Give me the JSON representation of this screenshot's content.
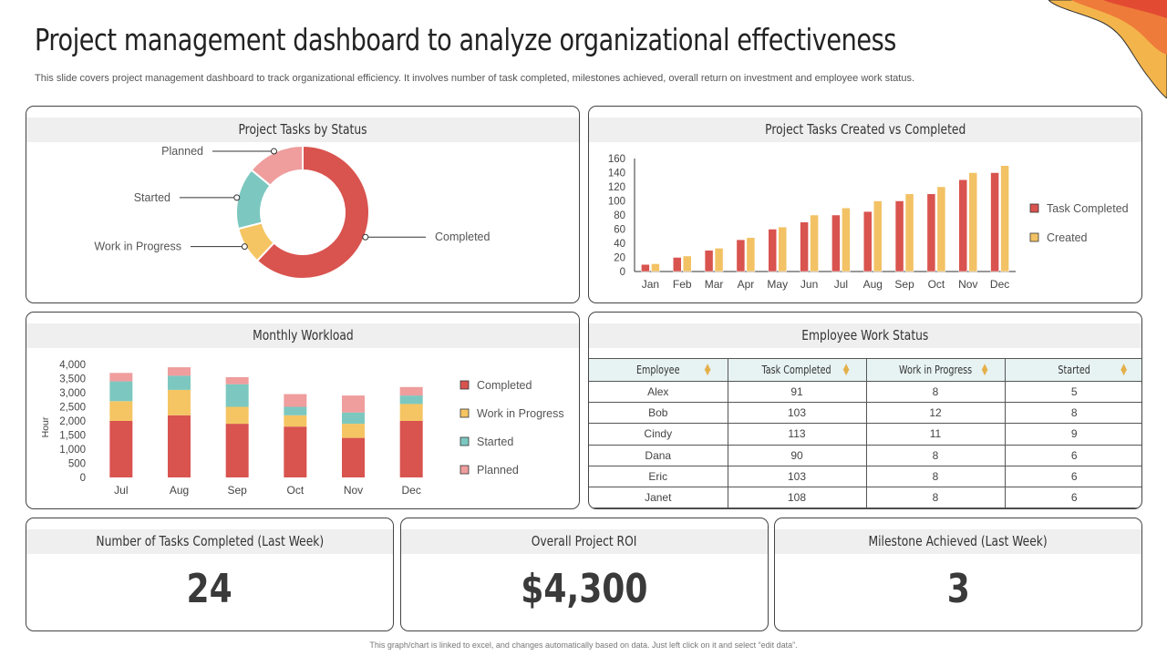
{
  "page": {
    "title": "Project management dashboard to analyze organizational effectiveness",
    "subtitle": "This slide covers project management dashboard to track organizational efficiency. It involves number of task completed, milestones achieved, overall return on investment and employee work status.",
    "footer": "This graph/chart is linked to excel, and changes automatically based on data. Just left click on it and select “edit data”."
  },
  "colors": {
    "completed": "#d9534f",
    "work_in_progress": "#f5c563",
    "started": "#7cc8c0",
    "planned": "#ef9d9d",
    "created": "#f2c265"
  },
  "panels": {
    "status_title": "Project Tasks by Status",
    "created_title": "Project Tasks Created  vs Completed",
    "workload_title": "Monthly Workload",
    "employee_title": "Employee Work Status"
  },
  "chart_data": [
    {
      "type": "pie",
      "title": "Project Tasks by Status",
      "labels": [
        "Completed",
        "Work in Progress",
        "Started",
        "Planned"
      ],
      "values": [
        62,
        9,
        15,
        14
      ]
    },
    {
      "type": "bar",
      "title": "Project Tasks Created  vs Completed",
      "categories": [
        "Jan",
        "Feb",
        "Mar",
        "Apr",
        "May",
        "Jun",
        "Jul",
        "Aug",
        "Sep",
        "Oct",
        "Nov",
        "Dec"
      ],
      "series": [
        {
          "name": "Task Completed",
          "values": [
            10,
            20,
            30,
            45,
            60,
            70,
            80,
            85,
            100,
            110,
            130,
            140
          ]
        },
        {
          "name": "Created",
          "values": [
            11,
            22,
            33,
            48,
            63,
            80,
            90,
            100,
            110,
            120,
            140,
            150
          ]
        }
      ],
      "yticks": [
        0,
        20,
        40,
        60,
        80,
        100,
        120,
        140,
        160
      ],
      "ylim": [
        0,
        160
      ],
      "legend": "right"
    },
    {
      "type": "bar",
      "stacked": true,
      "title": "Monthly Workload",
      "ylabel": "Hour",
      "categories": [
        "Jul",
        "Aug",
        "Sep",
        "Oct",
        "Nov",
        "Dec"
      ],
      "series": [
        {
          "name": "Completed",
          "values": [
            2000,
            2200,
            1900,
            1800,
            1400,
            2000
          ]
        },
        {
          "name": "Work in Progress",
          "values": [
            700,
            900,
            600,
            400,
            500,
            600
          ]
        },
        {
          "name": "Started",
          "values": [
            700,
            500,
            800,
            300,
            400,
            300
          ]
        },
        {
          "name": "Planned",
          "values": [
            300,
            300,
            250,
            450,
            600,
            300
          ]
        }
      ],
      "yticks": [
        "0",
        "500",
        "1,000",
        "1,500",
        "2,000",
        "2,500",
        "3,000",
        "3,500",
        "4,000"
      ],
      "ylim": [
        0,
        4000
      ],
      "legend": "right"
    }
  ],
  "employee_table": {
    "headers": [
      "Employee",
      "Task Completed",
      "Work in Progress",
      "Started"
    ],
    "rows": [
      [
        "Alex",
        "91",
        "8",
        "5"
      ],
      [
        "Bob",
        "103",
        "12",
        "8"
      ],
      [
        "Cindy",
        "113",
        "11",
        "9"
      ],
      [
        "Dana",
        "90",
        "8",
        "6"
      ],
      [
        "Eric",
        "103",
        "8",
        "6"
      ],
      [
        "Janet",
        "108",
        "8",
        "6"
      ]
    ]
  },
  "kpis": [
    {
      "label": "Number of Tasks Completed (Last Week)",
      "value": "24"
    },
    {
      "label": "Overall Project ROI",
      "value": "$4,300"
    },
    {
      "label": "Milestone Achieved (Last Week)",
      "value": "3"
    }
  ]
}
